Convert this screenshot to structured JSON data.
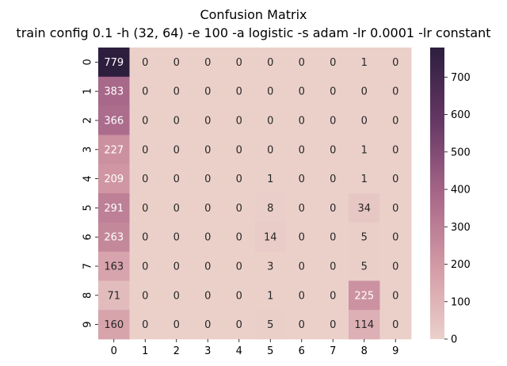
{
  "chart_data": {
    "type": "heatmap",
    "title": "Confusion Matrix",
    "subtitle": "train config 0.1 -h (32, 64) -e 100 -a logistic -s adam -lr 0.0001 -lr constant",
    "xlabel": "",
    "ylabel": "",
    "x_categories": [
      "0",
      "1",
      "2",
      "3",
      "4",
      "5",
      "6",
      "7",
      "8",
      "9"
    ],
    "y_categories": [
      "0",
      "1",
      "2",
      "3",
      "4",
      "5",
      "6",
      "7",
      "8",
      "9"
    ],
    "values": [
      [
        779,
        0,
        0,
        0,
        0,
        0,
        0,
        0,
        1,
        0
      ],
      [
        383,
        0,
        0,
        0,
        0,
        0,
        0,
        0,
        0,
        0
      ],
      [
        366,
        0,
        0,
        0,
        0,
        0,
        0,
        0,
        0,
        0
      ],
      [
        227,
        0,
        0,
        0,
        0,
        0,
        0,
        0,
        1,
        0
      ],
      [
        209,
        0,
        0,
        0,
        0,
        1,
        0,
        0,
        1,
        0
      ],
      [
        291,
        0,
        0,
        0,
        0,
        8,
        0,
        0,
        34,
        0
      ],
      [
        263,
        0,
        0,
        0,
        0,
        14,
        0,
        0,
        5,
        0
      ],
      [
        163,
        0,
        0,
        0,
        0,
        3,
        0,
        0,
        5,
        0
      ],
      [
        71,
        0,
        0,
        0,
        0,
        1,
        0,
        0,
        225,
        0
      ],
      [
        160,
        0,
        0,
        0,
        0,
        5,
        0,
        0,
        114,
        0
      ]
    ],
    "colorbar": {
      "min": 0,
      "max": 779,
      "ticks": [
        0,
        100,
        200,
        300,
        400,
        500,
        600,
        700
      ],
      "low_color": "#ebd0ca",
      "high_color": "#2d1e3e"
    },
    "annotations": true,
    "grid": false
  }
}
